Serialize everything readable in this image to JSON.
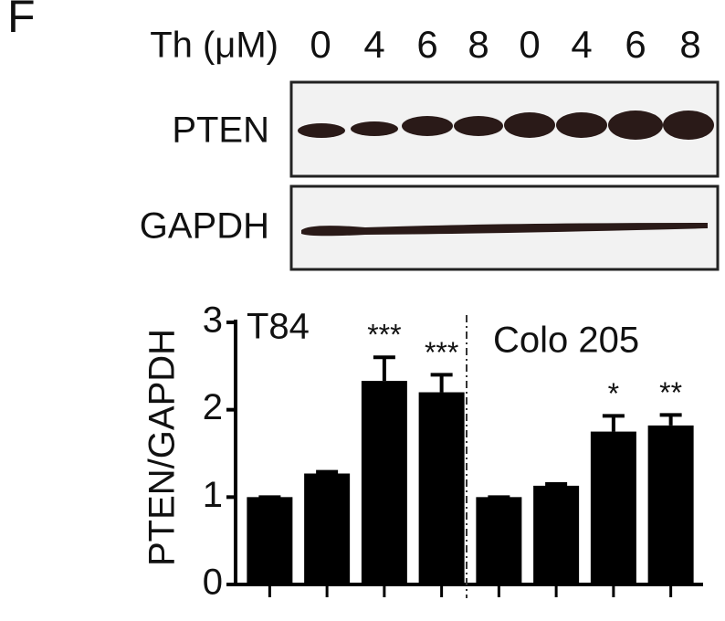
{
  "panel_label": "F",
  "blot": {
    "treatment_label": "Th (μM)",
    "lanes": [
      "0",
      "4",
      "6",
      "8",
      "0",
      "4",
      "6",
      "8"
    ],
    "rows": [
      "PTEN",
      "GAPDH"
    ]
  },
  "chart_data": {
    "type": "bar",
    "y_label": "PTEN/GAPDH",
    "categories": [
      null,
      null,
      null,
      null,
      null,
      null,
      null,
      null
    ],
    "values": [
      1.0,
      1.27,
      2.33,
      2.2,
      1.0,
      1.13,
      1.75,
      1.82
    ],
    "errors": [
      0,
      0.02,
      0.27,
      0.2,
      0,
      0.02,
      0.18,
      0.12
    ],
    "significance": [
      null,
      null,
      "***",
      "***",
      null,
      null,
      "*",
      "**"
    ],
    "groups": [
      "T84",
      "Colo 205"
    ],
    "color": "#000000",
    "ylim": [
      0,
      3
    ],
    "yticks": [
      0,
      1,
      2,
      3
    ]
  }
}
